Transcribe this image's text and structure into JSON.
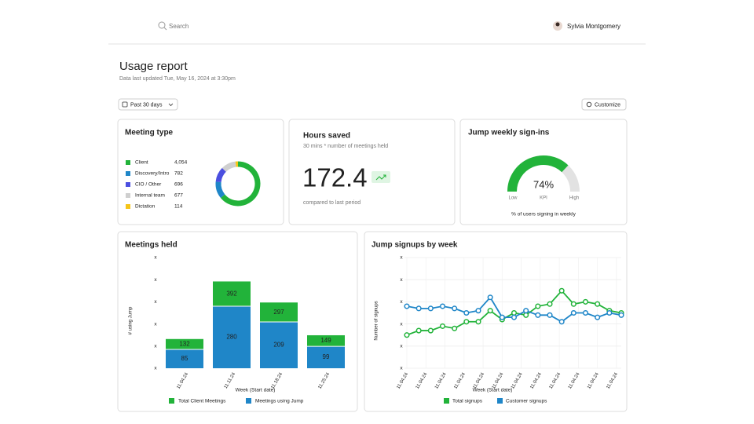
{
  "header": {
    "search_placeholder": "Search",
    "user_name": "Sylvia Montgomery"
  },
  "report": {
    "title": "Usage report",
    "subtitle": "Data last updated Tue, May 16, 2024 at 3:30pm",
    "date_filter": "Past 30 days",
    "customize": "Customize"
  },
  "hours_saved": {
    "title": "Hours saved",
    "subtitle": "30 mins * number of meetings held",
    "value": 172.4,
    "note": "compared to last period"
  },
  "weekly_signins": {
    "type": "gauge",
    "title": "Jump weekly sign-ins",
    "value": 74,
    "value_label": "74%",
    "ylim": [
      0,
      100
    ],
    "kpi_label": "KPI",
    "low_label": "Low",
    "high_label": "High",
    "caption": "% of users signing in weekly",
    "color": "#22b33a",
    "track_color": "#e2e2e2"
  },
  "chart_data": [
    {
      "type": "donut",
      "title": "Meeting type",
      "categories": [
        "Client",
        "Discovery/Intro",
        "CIO / Other",
        "Internal team",
        "Dictation"
      ],
      "values": [
        4054,
        782,
        696,
        677,
        114
      ],
      "value_labels": [
        "4,054",
        "782",
        "696",
        "677",
        "114"
      ],
      "colors": [
        "#22b33a",
        "#1f86c8",
        "#4b4fe0",
        "#cfcfcf",
        "#f5c518"
      ]
    },
    {
      "type": "bar",
      "title": "Meetings held",
      "categories": [
        "11.04.24",
        "11.11.24",
        "11.18.24",
        "11.25.24"
      ],
      "series": [
        {
          "name": "Total Client Meetings",
          "color": "#22b33a",
          "values": [
            132,
            392,
            297,
            149
          ]
        },
        {
          "name": "Meetings using Jump",
          "color": "#1f86c8",
          "values": [
            85,
            280,
            209,
            99
          ]
        }
      ],
      "ylim": [
        0,
        500
      ],
      "yticks": [
        {
          "value": 0,
          "label": "x"
        },
        {
          "value": 100,
          "label": "x"
        },
        {
          "value": 200,
          "label": "x"
        },
        {
          "value": 300,
          "label": "x"
        },
        {
          "value": 400,
          "label": "x"
        },
        {
          "value": 500,
          "label": "x"
        }
      ],
      "ylabel": "# using Jump",
      "xlabel": "Week (Start date)"
    },
    {
      "type": "line",
      "title": "Jump signups by week",
      "x": [
        1,
        2,
        3,
        4,
        5,
        6,
        7,
        8,
        9,
        10,
        11,
        12,
        13,
        14,
        15,
        16,
        17,
        18,
        19
      ],
      "xlim": [
        1,
        19
      ],
      "xticks": [
        {
          "value": 1,
          "label": "11.04.24"
        },
        {
          "value": 2.6,
          "label": "11.04.24"
        },
        {
          "value": 4.2,
          "label": "11.04.24"
        },
        {
          "value": 5.8,
          "label": "11.04.24"
        },
        {
          "value": 7.4,
          "label": "11.04.24"
        },
        {
          "value": 9,
          "label": "11.04.24"
        },
        {
          "value": 10.6,
          "label": "11.04.24"
        },
        {
          "value": 12.2,
          "label": "11.04.24"
        },
        {
          "value": 13.8,
          "label": "11.04.24"
        },
        {
          "value": 15.4,
          "label": "11.04.24"
        },
        {
          "value": 17,
          "label": "11.04.24"
        },
        {
          "value": 18.6,
          "label": "11.04.24"
        }
      ],
      "series": [
        {
          "name": "Total signups",
          "color": "#22b33a",
          "values": [
            15,
            17,
            17,
            19,
            18,
            21,
            21,
            26,
            22,
            25,
            24,
            28,
            29,
            35,
            29,
            30,
            29,
            26,
            25
          ]
        },
        {
          "name": "Customer signups",
          "color": "#1f86c8",
          "values": [
            28,
            27,
            27,
            28,
            27,
            25,
            26,
            32,
            23,
            23,
            26,
            24,
            24,
            21,
            25,
            25,
            23,
            25,
            24
          ]
        }
      ],
      "ylim": [
        0,
        50
      ],
      "yticks": [
        {
          "value": 0,
          "label": "x"
        },
        {
          "value": 10,
          "label": "x"
        },
        {
          "value": 20,
          "label": "x"
        },
        {
          "value": 30,
          "label": "x"
        },
        {
          "value": 40,
          "label": "x"
        },
        {
          "value": 50,
          "label": "x"
        }
      ],
      "ylabel": "Number of signups",
      "xlabel": "Week (Start date)",
      "grid": true
    }
  ]
}
